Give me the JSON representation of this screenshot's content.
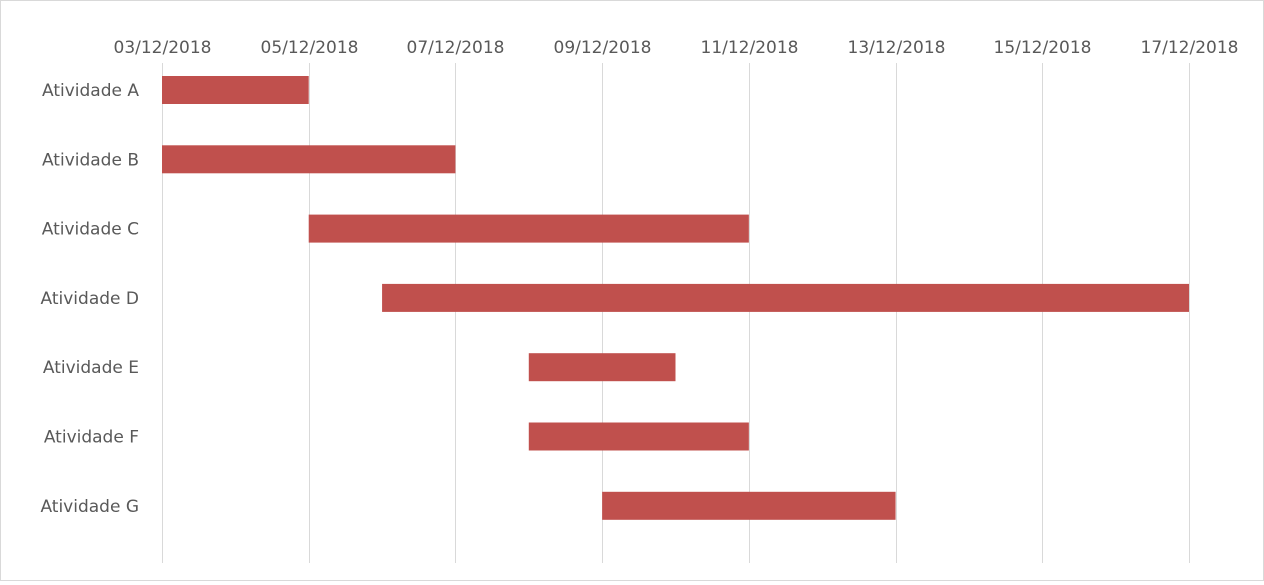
{
  "chart_data": {
    "type": "bar",
    "orientation": "horizontal",
    "subtype": "gantt",
    "title": "",
    "xlabel": "",
    "ylabel": "",
    "x_axis_position": "top",
    "x_ticks": [
      "03/12/2018",
      "05/12/2018",
      "07/12/2018",
      "09/12/2018",
      "11/12/2018",
      "13/12/2018",
      "15/12/2018",
      "17/12/2018"
    ],
    "xlim": [
      "03/12/2018",
      "17/12/2018"
    ],
    "grid": true,
    "legend": "none",
    "bar_color": "#c0504d",
    "grid_color": "#d9d9d9",
    "categories": [
      "Atividade A",
      "Atividade B",
      "Atividade C",
      "Atividade D",
      "Atividade E",
      "Atividade F",
      "Atividade G"
    ],
    "tasks": [
      {
        "label": "Atividade A",
        "start": "03/12/2018",
        "end": "05/12/2018"
      },
      {
        "label": "Atividade B",
        "start": "03/12/2018",
        "end": "07/12/2018"
      },
      {
        "label": "Atividade C",
        "start": "05/12/2018",
        "end": "11/12/2018"
      },
      {
        "label": "Atividade D",
        "start": "06/12/2018",
        "end": "17/12/2018"
      },
      {
        "label": "Atividade E",
        "start": "08/12/2018",
        "end": "10/12/2018"
      },
      {
        "label": "Atividade F",
        "start": "08/12/2018",
        "end": "11/12/2018"
      },
      {
        "label": "Atividade G",
        "start": "09/12/2018",
        "end": "13/12/2018"
      }
    ]
  }
}
